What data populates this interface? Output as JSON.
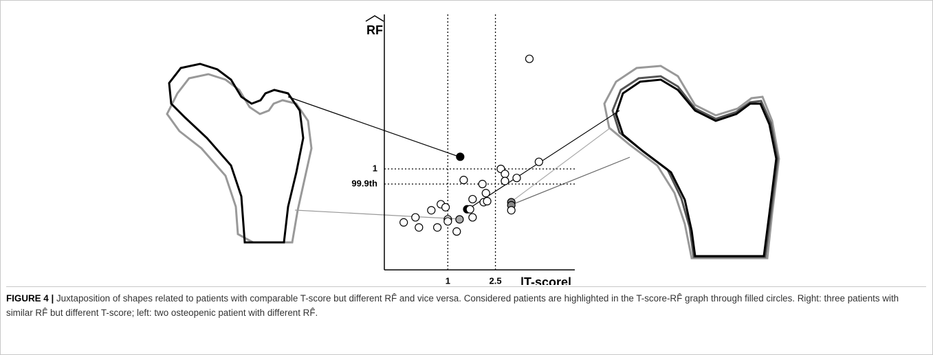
{
  "chart_data": {
    "type": "scatter",
    "x_label": "|T-score|",
    "y_label": "RF",
    "x": [
      3.57,
      1.39,
      2.67,
      3.87,
      2.8,
      2.8,
      3.17,
      1.5,
      2.09,
      2.2,
      1.78,
      2.13,
      2.24,
      1.61,
      1.7,
      3.0,
      3.0,
      3.0,
      0.78,
      0.93,
      0.48,
      -0.02,
      -0.39,
      0.09,
      0.67,
      1.0,
      1.0,
      1.37,
      1.78,
      1.28
    ],
    "values": [
      2.09,
      1.12,
      1.0,
      1.07,
      0.95,
      0.88,
      0.91,
      0.89,
      0.85,
      0.76,
      0.7,
      0.67,
      0.68,
      0.6,
      0.6,
      0.67,
      0.64,
      0.59,
      0.65,
      0.62,
      0.59,
      0.52,
      0.47,
      0.42,
      0.42,
      0.5,
      0.48,
      0.5,
      0.52,
      0.38
    ],
    "colors": [
      "#ffffff",
      "#000000",
      "#ffffff",
      "#ffffff",
      "#ffffff",
      "#ffffff",
      "#ffffff",
      "#ffffff",
      "#ffffff",
      "#ffffff",
      "#ffffff",
      "#ffffff",
      "#ffffff",
      "#000000",
      "#ffffff",
      "#888888",
      "#888888",
      "#ffffff",
      "#ffffff",
      "#ffffff",
      "#ffffff",
      "#ffffff",
      "#ffffff",
      "#ffffff",
      "#ffffff",
      "#ffffff",
      "#ffffff",
      "#aaaaaa",
      "#ffffff",
      "#ffffff"
    ],
    "xlim": [
      -1,
      5
    ],
    "ylim": [
      0,
      2.53
    ],
    "xticks": [
      1,
      2.5
    ],
    "yticks": [
      1,
      {
        "value": 0.85,
        "label": "99.9th"
      }
    ],
    "grid": true
  },
  "caption": {
    "label": "FIGURE 4 |",
    "text": "Juxtaposition of shapes related to patients with comparable T-score but different RF̂ and vice versa. Considered patients are highlighted in the T-score-RF̂ graph through filled circles. Right: three patients with similar RF̂ but different T-score; left: two osteopenic patient with different RF̂."
  }
}
